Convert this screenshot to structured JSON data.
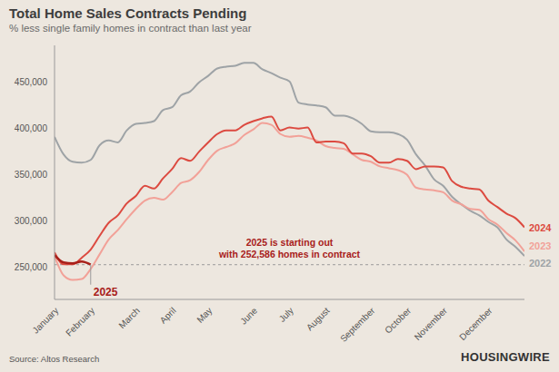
{
  "chart_data": {
    "type": "line",
    "title": "Total Home Sales Contracts Pending",
    "subtitle": "% less single family homes in contract than last year",
    "source": "Source: Altos Research",
    "logo": "HOUSINGWIRE",
    "categories": [
      "January",
      null,
      null,
      null,
      "February",
      null,
      null,
      null,
      null,
      "March",
      null,
      null,
      null,
      "April",
      null,
      null,
      null,
      "May",
      null,
      null,
      null,
      null,
      "June",
      null,
      null,
      null,
      "July",
      null,
      null,
      null,
      "August",
      null,
      null,
      null,
      null,
      "September",
      null,
      null,
      null,
      "October",
      null,
      null,
      null,
      "November",
      null,
      null,
      null,
      null,
      "December",
      null,
      null,
      null,
      null
    ],
    "series": [
      {
        "name": "2022",
        "color": "#9ea3a6",
        "values": [
          391000,
          372000,
          364000,
          363000,
          366000,
          382000,
          387000,
          385000,
          398000,
          405000,
          406000,
          408000,
          420000,
          423000,
          436000,
          440000,
          450000,
          457000,
          465000,
          467000,
          468000,
          471000,
          471000,
          464000,
          460000,
          455000,
          451000,
          428000,
          426000,
          425000,
          423000,
          414000,
          414000,
          411000,
          405000,
          397000,
          396000,
          396000,
          394000,
          388000,
          372000,
          360000,
          345000,
          338000,
          326000,
          318000,
          311000,
          306000,
          299000,
          293000,
          280000,
          272000,
          262000
        ]
      },
      {
        "name": "2023",
        "color": "#f2a198",
        "values": [
          262000,
          241000,
          236000,
          237000,
          248000,
          264000,
          280000,
          290000,
          302000,
          313000,
          322000,
          325000,
          323000,
          331000,
          341000,
          344000,
          353000,
          366000,
          376000,
          380000,
          384000,
          393000,
          399000,
          406000,
          404000,
          394000,
          391000,
          392000,
          390000,
          387000,
          381000,
          379000,
          378000,
          372000,
          366000,
          364000,
          359000,
          357000,
          355000,
          350000,
          336000,
          334000,
          333000,
          331000,
          322000,
          318000,
          313000,
          312000,
          302000,
          296000,
          287000,
          279000,
          267000
        ]
      },
      {
        "name": "2024",
        "color": "#dc4a40",
        "values": [
          266000,
          253000,
          253000,
          260000,
          269000,
          284000,
          298000,
          306000,
          319000,
          327000,
          338000,
          335000,
          346000,
          356000,
          368000,
          365000,
          375000,
          385000,
          394000,
          398000,
          398000,
          404000,
          408000,
          411000,
          413000,
          398000,
          401000,
          400000,
          401000,
          385000,
          386000,
          386000,
          384000,
          373000,
          373000,
          370000,
          363000,
          363000,
          367000,
          365000,
          356000,
          359000,
          359000,
          358000,
          343000,
          337000,
          335000,
          334000,
          322000,
          315000,
          308000,
          303000,
          293000
        ]
      },
      {
        "name": "2025",
        "color": "#a8201a",
        "values": [
          263000,
          255000,
          254000,
          256000,
          252586,
          null,
          null,
          null,
          null,
          null,
          null,
          null,
          null,
          null,
          null,
          null,
          null,
          null,
          null,
          null,
          null,
          null,
          null,
          null,
          null,
          null,
          null,
          null,
          null,
          null,
          null,
          null,
          null,
          null,
          null,
          null,
          null,
          null,
          null,
          null,
          null,
          null,
          null,
          null,
          null,
          null,
          null,
          null,
          null,
          null,
          null,
          null,
          null
        ]
      }
    ],
    "ylim": [
      215000,
      490000
    ],
    "yticks": [
      {
        "value": 250000,
        "label": "250,000"
      },
      {
        "value": 300000,
        "label": "300,000"
      },
      {
        "value": 350000,
        "label": "350,000"
      },
      {
        "value": 400000,
        "label": "400,000"
      },
      {
        "value": 450000,
        "label": "450,000"
      }
    ],
    "grid": false,
    "annotation": [
      "2025 is starting out",
      "with 252,586 homes in contract"
    ],
    "reference_line": 252586
  }
}
